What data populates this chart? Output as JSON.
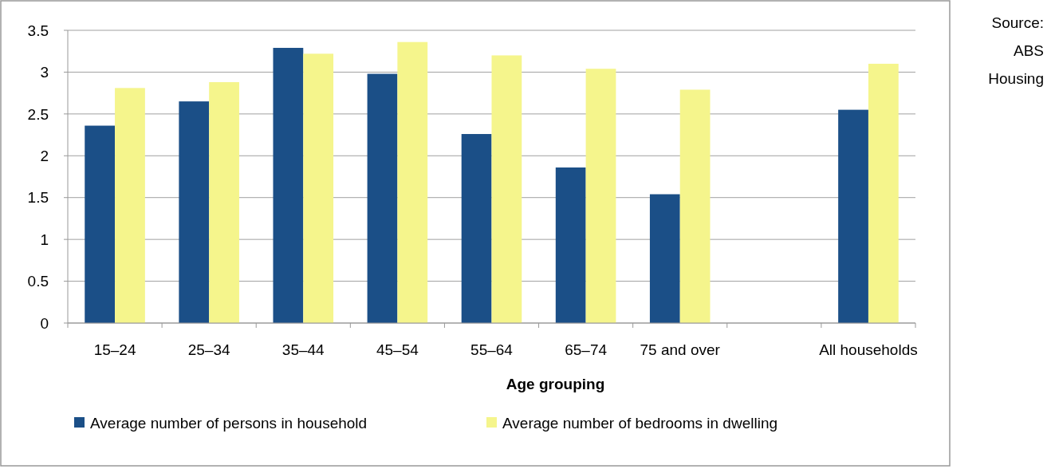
{
  "chart_data": {
    "type": "bar",
    "xlabel": "Age grouping",
    "categories": [
      "15–24",
      "25–34",
      "35–44",
      "45–54",
      "55–64",
      "65–74",
      "75 and over",
      null,
      "All households"
    ],
    "series": [
      {
        "name": "Average number of persons in household",
        "color": "#1b4f87",
        "values": [
          2.36,
          2.65,
          3.29,
          2.98,
          2.26,
          1.86,
          1.54,
          null,
          2.55
        ]
      },
      {
        "name": "Average number of bedrooms in dwelling",
        "color": "#f5f58c",
        "values": [
          2.81,
          2.88,
          3.22,
          3.36,
          3.2,
          3.04,
          2.79,
          null,
          3.1
        ]
      }
    ],
    "ylim": [
      0,
      3.5
    ],
    "yticks": [
      0,
      0.5,
      1,
      1.5,
      2,
      2.5,
      3,
      3.5
    ],
    "grid": "y",
    "legend": "bottom",
    "annotations": [
      "Source: ABS Housing"
    ]
  }
}
